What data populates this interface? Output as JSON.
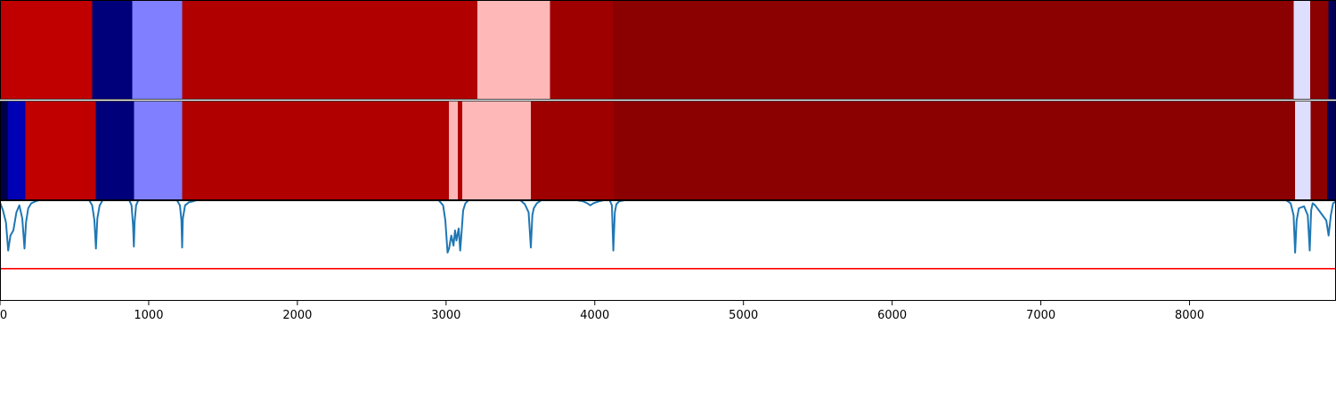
{
  "chart_data": [
    {
      "type": "heatmap",
      "name": "segment-track-top",
      "xlim": [
        0,
        8985
      ],
      "segments": [
        {
          "start": 0,
          "end": 620,
          "color": "#c00000"
        },
        {
          "start": 620,
          "end": 890,
          "color": "#00007a"
        },
        {
          "start": 890,
          "end": 1225,
          "color": "#7f7fff"
        },
        {
          "start": 1225,
          "end": 3210,
          "color": "#b00000"
        },
        {
          "start": 3210,
          "end": 3700,
          "color": "#ffb8b8"
        },
        {
          "start": 3700,
          "end": 4125,
          "color": "#9e0000"
        },
        {
          "start": 4125,
          "end": 8700,
          "color": "#8b0000"
        },
        {
          "start": 8700,
          "end": 8810,
          "color": "#dedeff"
        },
        {
          "start": 8810,
          "end": 8935,
          "color": "#8b0000"
        },
        {
          "start": 8935,
          "end": 8985,
          "color": "#00005a"
        }
      ]
    },
    {
      "type": "heatmap",
      "name": "segment-track-bottom",
      "xlim": [
        0,
        8985
      ],
      "segments": [
        {
          "start": 0,
          "end": 55,
          "color": "#00004a"
        },
        {
          "start": 55,
          "end": 170,
          "color": "#0000b4"
        },
        {
          "start": 170,
          "end": 645,
          "color": "#c00000"
        },
        {
          "start": 645,
          "end": 900,
          "color": "#00007a"
        },
        {
          "start": 900,
          "end": 1225,
          "color": "#7f7fff"
        },
        {
          "start": 1225,
          "end": 3020,
          "color": "#b00000"
        },
        {
          "start": 3020,
          "end": 3080,
          "color": "#ffb8b8"
        },
        {
          "start": 3080,
          "end": 3110,
          "color": "#b00000"
        },
        {
          "start": 3110,
          "end": 3570,
          "color": "#ffb8b8"
        },
        {
          "start": 3570,
          "end": 4130,
          "color": "#9e0000"
        },
        {
          "start": 4130,
          "end": 8710,
          "color": "#8b0000"
        },
        {
          "start": 8710,
          "end": 8815,
          "color": "#dedeff"
        },
        {
          "start": 8815,
          "end": 8925,
          "color": "#8b0000"
        },
        {
          "start": 8925,
          "end": 8985,
          "color": "#00005a"
        }
      ]
    },
    {
      "type": "line",
      "name": "signal-panel",
      "xlim": [
        0,
        8985
      ],
      "ylim": [
        -1.0,
        0.0
      ],
      "series": [
        {
          "color": "#1f77b4",
          "x": [
            0,
            20,
            40,
            55,
            70,
            90,
            110,
            130,
            150,
            165,
            175,
            190,
            210,
            240,
            260,
            600,
            620,
            635,
            645,
            655,
            670,
            690,
            870,
            885,
            895,
            900,
            905,
            915,
            930,
            1190,
            1210,
            1220,
            1225,
            1230,
            1245,
            1270,
            1300,
            1320,
            2950,
            2980,
            2995,
            3010,
            3020,
            3035,
            3050,
            3060,
            3070,
            3085,
            3095,
            3105,
            3115,
            3130,
            3150,
            3500,
            3530,
            3555,
            3570,
            3580,
            3590,
            3610,
            3640,
            3880,
            3920,
            3950,
            3970,
            3990,
            4030,
            4060,
            4100,
            4115,
            4125,
            4135,
            4145,
            4165,
            4200,
            8650,
            8680,
            8700,
            8710,
            8720,
            8735,
            8770,
            8795,
            8808,
            8818,
            8828,
            8845,
            8880,
            8920,
            8935,
            8950,
            8965,
            8985
          ],
          "y": [
            -0.02,
            -0.1,
            -0.22,
            -0.5,
            -0.35,
            -0.3,
            -0.12,
            -0.05,
            -0.18,
            -0.48,
            -0.22,
            -0.08,
            -0.03,
            -0.01,
            0,
            0,
            -0.05,
            -0.2,
            -0.48,
            -0.18,
            -0.05,
            0,
            0,
            -0.05,
            -0.25,
            -0.46,
            -0.22,
            -0.05,
            0,
            0,
            -0.05,
            -0.2,
            -0.47,
            -0.18,
            -0.05,
            -0.02,
            -0.01,
            0,
            0,
            -0.05,
            -0.2,
            -0.52,
            -0.48,
            -0.35,
            -0.45,
            -0.3,
            -0.4,
            -0.28,
            -0.5,
            -0.3,
            -0.1,
            -0.03,
            0,
            0,
            -0.04,
            -0.12,
            -0.47,
            -0.15,
            -0.08,
            -0.03,
            0,
            0,
            -0.01,
            -0.03,
            -0.05,
            -0.03,
            -0.01,
            0,
            0,
            -0.05,
            -0.5,
            -0.12,
            -0.04,
            -0.01,
            0,
            0,
            -0.03,
            -0.15,
            -0.52,
            -0.2,
            -0.08,
            -0.06,
            -0.15,
            -0.5,
            -0.1,
            -0.03,
            -0.05,
            -0.12,
            -0.2,
            -0.35,
            -0.15,
            -0.03,
            -0.01
          ],
          "threshold": {
            "y": -0.68,
            "color": "#ff0000"
          }
        }
      ]
    }
  ],
  "x_axis": {
    "ticks": [
      0,
      1000,
      2000,
      3000,
      4000,
      5000,
      6000,
      7000,
      8000
    ],
    "tick_labels": [
      "0",
      "1000",
      "2000",
      "3000",
      "4000",
      "5000",
      "6000",
      "7000",
      "8000"
    ],
    "xlabel": ""
  }
}
